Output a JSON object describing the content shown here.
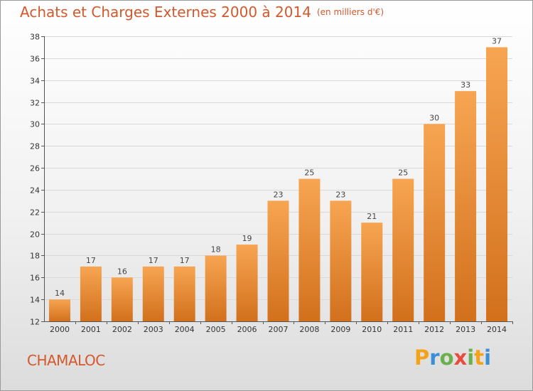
{
  "header": {
    "title": "Achats et Charges Externes 2000 à 2014",
    "subtitle": "(en milliers d'€)"
  },
  "footer": {
    "city": "CHAMALOC",
    "brand": {
      "letters": [
        "P",
        "r",
        "o",
        "x",
        "i",
        "t",
        "i"
      ],
      "colors": [
        "#f5a21b",
        "#3a8fd6",
        "#6ab04c",
        "#e94b3c",
        "#6ab04c",
        "#f5a21b",
        "#3a8fd6"
      ]
    }
  },
  "colors": {
    "bar_light": "#f7a552",
    "bar_dark": "#d2701c",
    "grid": "#d9d9d9",
    "axis": "#555555",
    "accent": "#d4582c"
  },
  "chart_data": {
    "type": "bar",
    "title": "Achats et Charges Externes 2000 à 2014",
    "subtitle": "(en milliers d'€)",
    "categories": [
      "2000",
      "2001",
      "2002",
      "2003",
      "2004",
      "2005",
      "2006",
      "2007",
      "2008",
      "2009",
      "2010",
      "2011",
      "2012",
      "2013",
      "2014"
    ],
    "values": [
      14,
      17,
      16,
      17,
      17,
      18,
      19,
      23,
      25,
      23,
      21,
      25,
      30,
      33,
      37
    ],
    "ylim": [
      12,
      38
    ],
    "yticks": [
      12,
      14,
      16,
      18,
      20,
      22,
      24,
      26,
      28,
      30,
      32,
      34,
      36,
      38
    ],
    "grid": true,
    "legend": "none"
  }
}
